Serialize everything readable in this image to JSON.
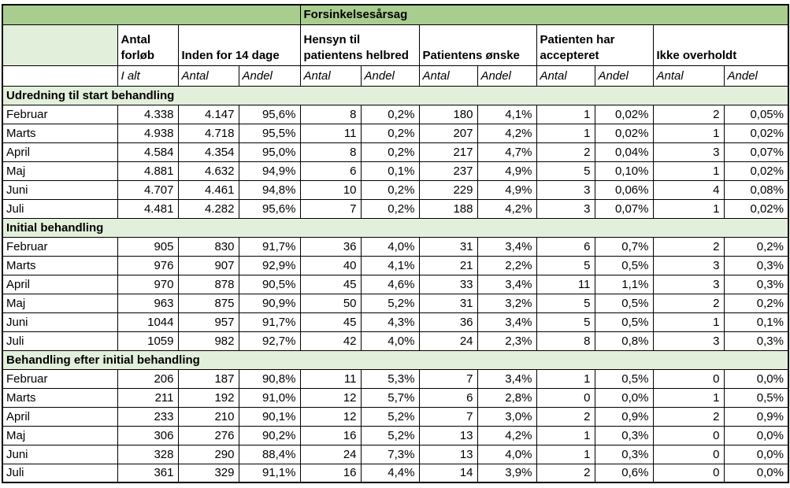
{
  "colors": {
    "header_green": "#a9cd8e",
    "section_light_green": "#e2efda",
    "border": "#000000",
    "background": "#ffffff"
  },
  "chart_data": {
    "type": "table",
    "title": "Forsinkelsesårsag",
    "column_groups": [
      {
        "label": "Antal forløb",
        "span": 1
      },
      {
        "label": "Inden for 14 dage",
        "span": 2
      },
      {
        "label": "Hensyn til patientens helbred",
        "span": 2
      },
      {
        "label": "Patientens ønske",
        "span": 2
      },
      {
        "label": "Patienten har accepteret",
        "span": 2
      },
      {
        "label": "Ikke overholdt",
        "span": 2
      }
    ],
    "sub_headers": [
      "I alt",
      "Antal",
      "Andel",
      "Antal",
      "Andel",
      "Antal",
      "Andel",
      "Antal",
      "Andel",
      "Antal",
      "Andel"
    ],
    "sections": [
      {
        "label": "Udredning til start behandling",
        "rows": [
          {
            "month": "Februar",
            "values": [
              "4.338",
              "4.147",
              "95,6%",
              "8",
              "0,2%",
              "180",
              "4,1%",
              "1",
              "0,02%",
              "2",
              "0,05%"
            ]
          },
          {
            "month": "Marts",
            "values": [
              "4.938",
              "4.718",
              "95,5%",
              "11",
              "0,2%",
              "207",
              "4,2%",
              "1",
              "0,02%",
              "1",
              "0,02%"
            ]
          },
          {
            "month": "April",
            "values": [
              "4.584",
              "4.354",
              "95,0%",
              "8",
              "0,2%",
              "217",
              "4,7%",
              "2",
              "0,04%",
              "3",
              "0,07%"
            ]
          },
          {
            "month": "Maj",
            "values": [
              "4.881",
              "4.632",
              "94,9%",
              "6",
              "0,1%",
              "237",
              "4,9%",
              "5",
              "0,10%",
              "1",
              "0,02%"
            ]
          },
          {
            "month": "Juni",
            "values": [
              "4.707",
              "4.461",
              "94,8%",
              "10",
              "0,2%",
              "229",
              "4,9%",
              "3",
              "0,06%",
              "4",
              "0,08%"
            ]
          },
          {
            "month": "Juli",
            "values": [
              "4.481",
              "4.282",
              "95,6%",
              "7",
              "0,2%",
              "188",
              "4,2%",
              "3",
              "0,07%",
              "1",
              "0,02%"
            ]
          }
        ]
      },
      {
        "label": "Initial behandling",
        "rows": [
          {
            "month": "Februar",
            "values": [
              "905",
              "830",
              "91,7%",
              "36",
              "4,0%",
              "31",
              "3,4%",
              "6",
              "0,7%",
              "2",
              "0,2%"
            ]
          },
          {
            "month": "Marts",
            "values": [
              "976",
              "907",
              "92,9%",
              "40",
              "4,1%",
              "21",
              "2,2%",
              "5",
              "0,5%",
              "3",
              "0,3%"
            ]
          },
          {
            "month": "April",
            "values": [
              "970",
              "878",
              "90,5%",
              "45",
              "4,6%",
              "33",
              "3,4%",
              "11",
              "1,1%",
              "3",
              "0,3%"
            ]
          },
          {
            "month": "Maj",
            "values": [
              "963",
              "875",
              "90,9%",
              "50",
              "5,2%",
              "31",
              "3,2%",
              "5",
              "0,5%",
              "2",
              "0,2%"
            ]
          },
          {
            "month": "Juni",
            "values": [
              "1044",
              "957",
              "91,7%",
              "45",
              "4,3%",
              "36",
              "3,4%",
              "5",
              "0,5%",
              "1",
              "0,1%"
            ]
          },
          {
            "month": "Juli",
            "values": [
              "1059",
              "982",
              "92,7%",
              "42",
              "4,0%",
              "24",
              "2,3%",
              "8",
              "0,8%",
              "3",
              "0,3%"
            ]
          }
        ]
      },
      {
        "label": "Behandling efter initial behandling",
        "rows": [
          {
            "month": "Februar",
            "values": [
              "206",
              "187",
              "90,8%",
              "11",
              "5,3%",
              "7",
              "3,4%",
              "1",
              "0,5%",
              "0",
              "0,0%"
            ]
          },
          {
            "month": "Marts",
            "values": [
              "211",
              "192",
              "91,0%",
              "12",
              "5,7%",
              "6",
              "2,8%",
              "0",
              "0,0%",
              "1",
              "0,5%"
            ]
          },
          {
            "month": "April",
            "values": [
              "233",
              "210",
              "90,1%",
              "12",
              "5,2%",
              "7",
              "3,0%",
              "2",
              "0,9%",
              "2",
              "0,9%"
            ]
          },
          {
            "month": "Maj",
            "values": [
              "306",
              "276",
              "90,2%",
              "16",
              "5,2%",
              "13",
              "4,2%",
              "1",
              "0,3%",
              "0",
              "0,0%"
            ]
          },
          {
            "month": "Juni",
            "values": [
              "328",
              "290",
              "88,4%",
              "24",
              "7,3%",
              "13",
              "4,0%",
              "1",
              "0,3%",
              "0",
              "0,0%"
            ]
          },
          {
            "month": "Juli",
            "values": [
              "361",
              "329",
              "91,1%",
              "16",
              "4,4%",
              "14",
              "3,9%",
              "2",
              "0,6%",
              "0",
              "0,0%"
            ]
          }
        ]
      }
    ]
  }
}
